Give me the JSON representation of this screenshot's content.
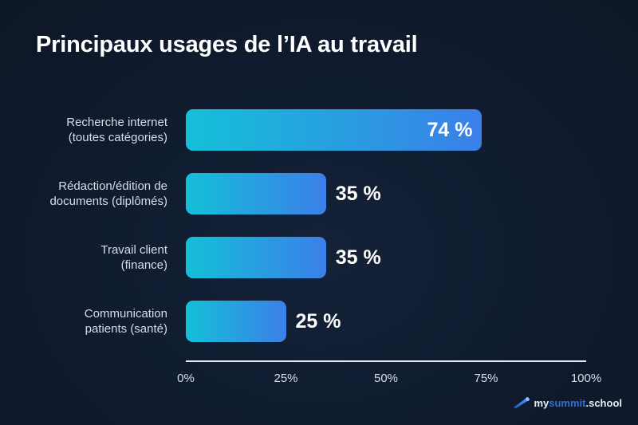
{
  "title": "Principaux usages de l’IA au travail",
  "colors": {
    "background": "#0f1a2d",
    "bar_gradient_start": "#14c0d8",
    "bar_gradient_end": "#3b7fe8",
    "text": "#ffffff",
    "label_text": "#d8dee8",
    "brand_accent": "#2f6fd6"
  },
  "chart_data": {
    "type": "bar",
    "orientation": "horizontal",
    "title": "Principaux usages de l’IA au travail",
    "categories": [
      "Recherche internet (toutes catégories)",
      "Rédaction/édition de documents (diplômés)",
      "Travail client (finance)",
      "Communication patients (santé)"
    ],
    "values": [
      74,
      35,
      35,
      25
    ],
    "unit": "%",
    "xlabel": "",
    "ylabel": "",
    "xlim": [
      0,
      100
    ],
    "x_ticks": [
      "0%",
      "25%",
      "50%",
      "75%",
      "100%"
    ],
    "grid": false,
    "legend": null
  },
  "rows": [
    {
      "label_line1": "Recherche internet",
      "label_line2": "(toutes catégories)",
      "value": 74,
      "value_label": "74 %",
      "label_inside": true
    },
    {
      "label_line1": "Rédaction/édition de",
      "label_line2": "documents (diplômés)",
      "value": 35,
      "value_label": "35 %",
      "label_inside": false
    },
    {
      "label_line1": "Travail client",
      "label_line2": "(finance)",
      "value": 35,
      "value_label": "35 %",
      "label_inside": false
    },
    {
      "label_line1": "Communication",
      "label_line2": "patients (santé)",
      "value": 25,
      "value_label": "25 %",
      "label_inside": false
    }
  ],
  "axis": {
    "ticks": [
      {
        "label": "0%",
        "pct": 0
      },
      {
        "label": "25%",
        "pct": 25
      },
      {
        "label": "50%",
        "pct": 50
      },
      {
        "label": "75%",
        "pct": 75
      },
      {
        "label": "100%",
        "pct": 100
      }
    ]
  },
  "brand": {
    "icon": "telescope-icon",
    "part1": "my",
    "part2": "summit",
    "part3": ".school"
  }
}
